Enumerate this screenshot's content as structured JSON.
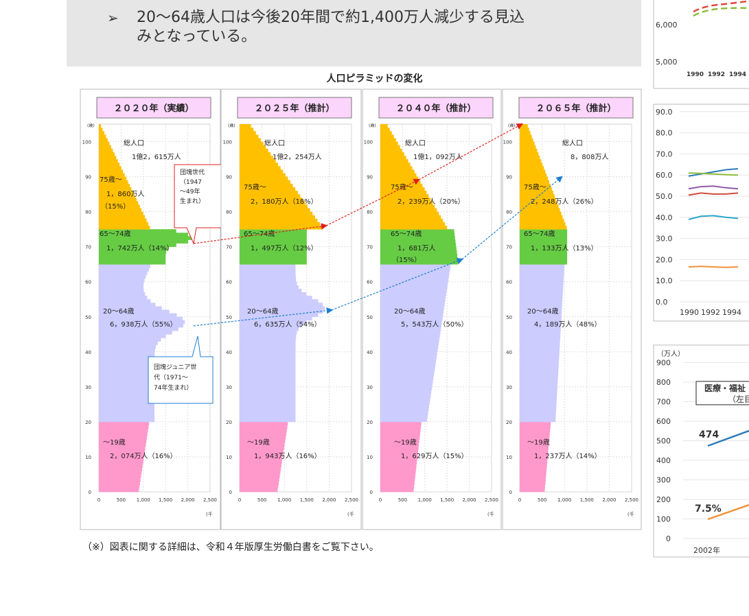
{
  "banner": {
    "bullet": "➢",
    "line1": "20～64歳人口は今後20年間で約1,400万人減少する見込",
    "line2": "みとなっている。"
  },
  "pyramid_title": "人口ピラミッドの変化",
  "footnote": "（※）図表に関する詳細は、令和４年版厚生労働白書をご覧下さい。",
  "colors": {
    "c75": "#ffc000",
    "c65": "#66cc44",
    "c20": "#ccccff",
    "c19": "#ff99cc",
    "arrowRed": "#e02020",
    "arrowBlue": "#1f7fcf"
  },
  "chart_data": [
    {
      "type": "bar",
      "title": "人口ピラミッドの変化",
      "panels": [
        {
          "header": "２０２０年（実績）",
          "y_unit": "(歳)",
          "x_unit": "(千",
          "total_label": "総人口",
          "total_value": "1億2，615万人",
          "groups": [
            {
              "label": "75歳～",
              "value": "1，860万人",
              "share": "（15%）"
            },
            {
              "label": "65～74歳",
              "value": "1，742万人",
              "share": "（14%）"
            },
            {
              "label": "20～64歳",
              "value": "6，938万人",
              "share": "（55%）"
            },
            {
              "label": "～19歳",
              "value": "2，074万人",
              "share": "（16%）"
            }
          ],
          "callouts": [
            {
              "text": [
                "団塊世代",
                "（1947",
                "～49年",
                "生まれ）"
              ],
              "color": "#e02020"
            },
            {
              "text": [
                "団塊ジュニア世",
                "代（1971～",
                "74年生まれ）"
              ],
              "color": "#1f7fcf"
            }
          ]
        },
        {
          "header": "２０２５年（推計）",
          "y_unit": "(歳)",
          "x_unit": "(千",
          "total_label": "総人口",
          "total_value": "1億2，254万人",
          "groups": [
            {
              "label": "75歳～",
              "value": "2，180万人",
              "share": "（18%）"
            },
            {
              "label": "65～74歳",
              "value": "1，497万人",
              "share": "（12%）"
            },
            {
              "label": "20～64歳",
              "value": "6，635万人",
              "share": "（54%）"
            },
            {
              "label": "～19歳",
              "value": "1，943万人",
              "share": "（16%）"
            }
          ]
        },
        {
          "header": "２０４０年（推計）",
          "y_unit": "(歳)",
          "x_unit": "(千",
          "total_label": "総人口",
          "total_value": "1億1，092万人",
          "groups": [
            {
              "label": "75歳～",
              "value": "2，239万人",
              "share": "（20%）"
            },
            {
              "label": "65～74歳",
              "value": "1，681万人",
              "share": "（15%）"
            },
            {
              "label": "20～64歳",
              "value": "5，543万人",
              "share": "（50%）"
            },
            {
              "label": "～19歳",
              "value": "1，629万人",
              "share": "（15%）"
            }
          ]
        },
        {
          "header": "２０６５年（推計）",
          "y_unit": "(歳)",
          "x_unit": "(千",
          "total_label": "総人口",
          "total_value": "8，808万人",
          "groups": [
            {
              "label": "75歳～",
              "value": "2，248万人",
              "share": "（26%）"
            },
            {
              "label": "65～74歳",
              "value": "1，133万人",
              "share": "（13%）"
            },
            {
              "label": "20～64歳",
              "value": "4，189万人",
              "share": "（48%）"
            },
            {
              "label": "～19歳",
              "value": "1，237万人",
              "share": "（14%）"
            }
          ]
        }
      ],
      "y_ticks": [
        0,
        10,
        20,
        30,
        40,
        50,
        60,
        70,
        80,
        90,
        100
      ],
      "x_ticks": [
        "0",
        "500",
        "1,000",
        "1,500",
        "2,000",
        "2,500"
      ],
      "xlim": [
        0,
        2500
      ],
      "ylim": [
        0,
        105
      ],
      "age_bands": [
        [
          0,
          20
        ],
        [
          20,
          65
        ],
        [
          65,
          75
        ],
        [
          75,
          105
        ]
      ]
    },
    {
      "type": "line",
      "y_ticks": [
        "6,000",
        "5,000"
      ],
      "x_ticks": [
        "1990",
        "1992",
        "1994"
      ]
    },
    {
      "type": "line",
      "y_ticks": [
        "90.0",
        "80.0",
        "70.0",
        "60.0",
        "50.0",
        "40.0",
        "30.0",
        "20.0",
        "10.0",
        "0.0"
      ],
      "x_ticks": [
        "1990",
        "1992",
        "1994"
      ],
      "series": [
        {
          "color": "#2b7bba",
          "values": [
            59.5,
            60.5,
            61.5,
            62.5,
            63
          ]
        },
        {
          "color": "#8dbb3a",
          "values": [
            61,
            60.8,
            60.5,
            60.2,
            60
          ]
        },
        {
          "color": "#8e5aa8",
          "values": [
            53.5,
            54.5,
            54.8,
            54,
            53.5
          ]
        },
        {
          "color": "#d24a3c",
          "values": [
            50.5,
            51.5,
            51,
            51,
            51.5
          ]
        },
        {
          "color": "#2aa8c8",
          "values": [
            39,
            40.5,
            40.8,
            40,
            39.5
          ]
        },
        {
          "color": "#f0913a",
          "values": [
            16.5,
            16.8,
            16.5,
            16.3,
            16.5
          ]
        }
      ]
    },
    {
      "type": "line",
      "unit": "（万人）",
      "y_ticks": [
        "900",
        "800",
        "700",
        "600",
        "500",
        "400",
        "300",
        "200",
        "100",
        "0"
      ],
      "x_ticks": [
        "2002年"
      ],
      "legend_box": [
        "医療・福祉",
        "（左目"
      ],
      "labels": [
        "474",
        "7.5%"
      ]
    }
  ]
}
